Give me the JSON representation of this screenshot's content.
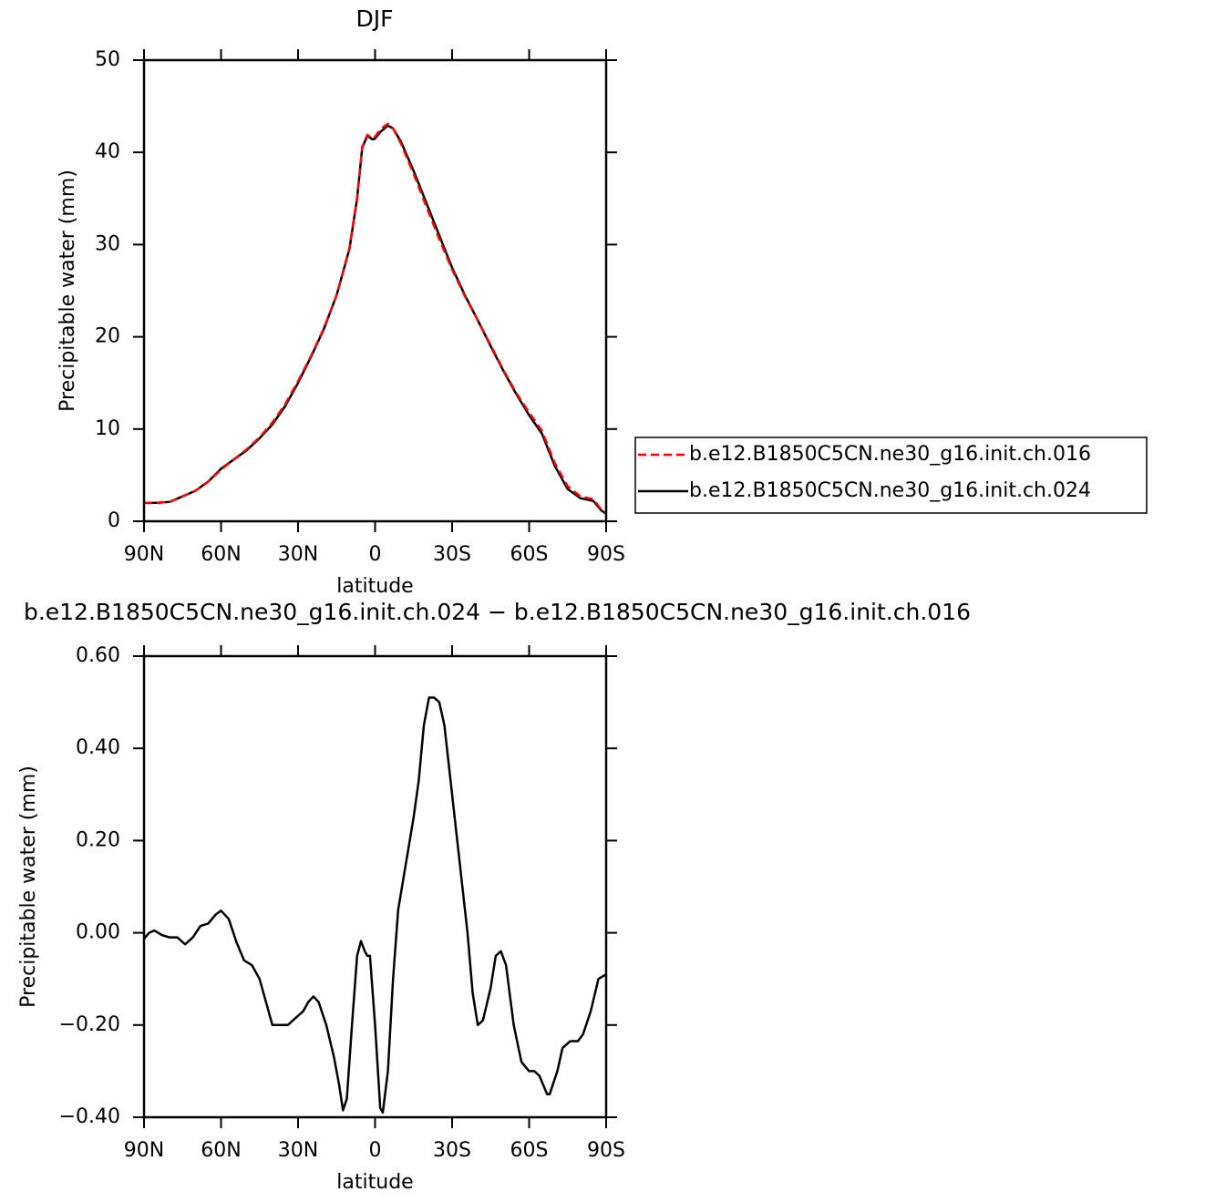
{
  "chart_data": [
    {
      "type": "line",
      "title": "DJF",
      "xlabel": "latitude",
      "ylabel": "Precipitable water (mm)",
      "x": [
        90,
        85,
        80,
        75,
        70,
        65,
        60,
        55,
        50,
        45,
        40,
        35,
        30,
        25,
        20,
        15,
        10,
        7,
        5,
        3,
        1,
        0,
        -2,
        -5,
        -7,
        -10,
        -15,
        -20,
        -25,
        -30,
        -35,
        -40,
        -45,
        -50,
        -55,
        -60,
        -65,
        -70,
        -75,
        -80,
        -85,
        -88,
        -90
      ],
      "series": [
        {
          "name": "b.e12.B1850C5CN.ne30_g16.init.ch.016",
          "color": "#ff0000",
          "dash": true,
          "values": [
            2.0,
            2.0,
            2.1,
            2.7,
            3.3,
            4.3,
            5.6,
            6.7,
            7.8,
            9.1,
            10.7,
            12.7,
            15.2,
            17.9,
            20.9,
            24.5,
            29.6,
            35.1,
            40.6,
            41.9,
            41.5,
            41.7,
            42.5,
            43.1,
            42.6,
            41.0,
            37.7,
            34.1,
            30.6,
            27.3,
            24.4,
            21.8,
            19.1,
            16.4,
            13.9,
            11.8,
            9.8,
            6.3,
            3.8,
            2.7,
            2.4,
            1.3,
            0.9
          ]
        },
        {
          "name": "b.e12.B1850C5CN.ne30_g16.init.ch.024",
          "color": "#000000",
          "dash": false,
          "values": [
            2.0,
            2.0,
            2.1,
            2.7,
            3.3,
            4.3,
            5.7,
            6.7,
            7.7,
            9.0,
            10.5,
            12.5,
            15.0,
            17.8,
            20.8,
            24.5,
            29.5,
            35.0,
            40.5,
            41.8,
            41.4,
            41.5,
            42.2,
            42.9,
            42.6,
            41.2,
            38.0,
            34.5,
            31.0,
            27.5,
            24.5,
            21.8,
            19.0,
            16.3,
            13.8,
            11.5,
            9.5,
            6.0,
            3.5,
            2.5,
            2.2,
            1.2,
            0.8
          ]
        }
      ],
      "xlim": [
        90,
        -90
      ],
      "xticks": [
        {
          "value": 90,
          "label": "90N"
        },
        {
          "value": 60,
          "label": "60N"
        },
        {
          "value": 30,
          "label": "30N"
        },
        0,
        {
          "value": -30,
          "label": "30S"
        },
        {
          "value": -60,
          "label": "60S"
        },
        {
          "value": -90,
          "label": "90S"
        }
      ],
      "ylim": [
        0,
        50
      ],
      "yticks": [
        0,
        10,
        20,
        30,
        40,
        50
      ],
      "legend": "right"
    },
    {
      "type": "line",
      "title": "b.e12.B1850C5CN.ne30_g16.init.ch.024 − b.e12.B1850C5CN.ne30_g16.init.ch.016",
      "xlabel": "latitude",
      "ylabel": "Precipitable water (mm)",
      "x": [
        90,
        88,
        86,
        83,
        80,
        77,
        74,
        71,
        68,
        65,
        62,
        60,
        57,
        54,
        51,
        48,
        45,
        42,
        40,
        37,
        34,
        31,
        28,
        26,
        24,
        22,
        19,
        16,
        14,
        12.5,
        11,
        9,
        7,
        5.5,
        4,
        3,
        2,
        0,
        -2,
        -3,
        -5,
        -7,
        -9,
        -12,
        -15,
        -17,
        -19,
        -21,
        -23,
        -25,
        -27,
        -30,
        -33,
        -36,
        -38,
        -40,
        -42,
        -45,
        -47,
        -49,
        -51,
        -54,
        -57,
        -60,
        -62,
        -64,
        -67,
        -68,
        -71,
        -73,
        -76,
        -79,
        -81,
        -84,
        -87,
        -90
      ],
      "color": "#000000",
      "values": [
        -0.013,
        0.0,
        0.005,
        -0.005,
        -0.01,
        -0.01,
        -0.025,
        -0.01,
        0.015,
        0.02,
        0.04,
        0.048,
        0.03,
        -0.02,
        -0.06,
        -0.07,
        -0.1,
        -0.16,
        -0.2,
        -0.2,
        -0.2,
        -0.185,
        -0.17,
        -0.15,
        -0.138,
        -0.15,
        -0.2,
        -0.27,
        -0.33,
        -0.385,
        -0.36,
        -0.2,
        -0.05,
        -0.018,
        -0.04,
        -0.05,
        -0.05,
        -0.2,
        -0.38,
        -0.39,
        -0.3,
        -0.1,
        0.05,
        0.15,
        0.25,
        0.33,
        0.45,
        0.51,
        0.51,
        0.5,
        0.45,
        0.3,
        0.15,
        0.0,
        -0.13,
        -0.2,
        -0.19,
        -0.12,
        -0.05,
        -0.04,
        -0.07,
        -0.2,
        -0.28,
        -0.3,
        -0.3,
        -0.31,
        -0.35,
        -0.35,
        -0.3,
        -0.25,
        -0.235,
        -0.235,
        -0.22,
        -0.17,
        -0.1,
        -0.09
      ],
      "xlim": [
        90,
        -90
      ],
      "xticks": [
        {
          "value": 90,
          "label": "90N"
        },
        {
          "value": 60,
          "label": "60N"
        },
        {
          "value": 30,
          "label": "30N"
        },
        0,
        {
          "value": -30,
          "label": "30S"
        },
        {
          "value": -60,
          "label": "60S"
        },
        {
          "value": -90,
          "label": "90S"
        }
      ],
      "ylim": [
        -0.4,
        0.6
      ],
      "yticks": [
        {
          "value": -0.4,
          "label": "−0.40"
        },
        {
          "value": -0.2,
          "label": "−0.20"
        },
        {
          "value": 0,
          "label": "0.00"
        },
        {
          "value": 0.2,
          "label": "0.20"
        },
        {
          "value": 0.4,
          "label": "0.40"
        },
        {
          "value": 0.6,
          "label": "0.60"
        }
      ]
    }
  ]
}
